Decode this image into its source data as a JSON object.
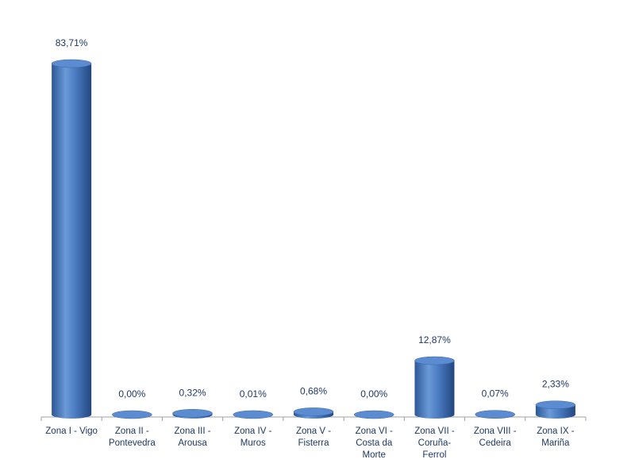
{
  "chart_data": {
    "type": "bar",
    "categories": [
      "Zona I - Vigo",
      "Zona II - Pontevedra",
      "Zona III - Arousa",
      "Zona IV - Muros",
      "Zona V - Fisterra",
      "Zona VI - Costa da Morte",
      "Zona VII - Coruña-Ferrol",
      "Zona VIII - Cedeira",
      "Zona IX - Mariña"
    ],
    "values": [
      83.71,
      0.0,
      0.32,
      0.01,
      0.68,
      0.0,
      12.87,
      0.07,
      2.33
    ],
    "value_labels": [
      "83,71%",
      "0,00%",
      "0,32%",
      "0,01%",
      "0,68%",
      "0,00%",
      "12,87%",
      "0,07%",
      "2,33%"
    ],
    "color": "#4a7ac0"
  }
}
